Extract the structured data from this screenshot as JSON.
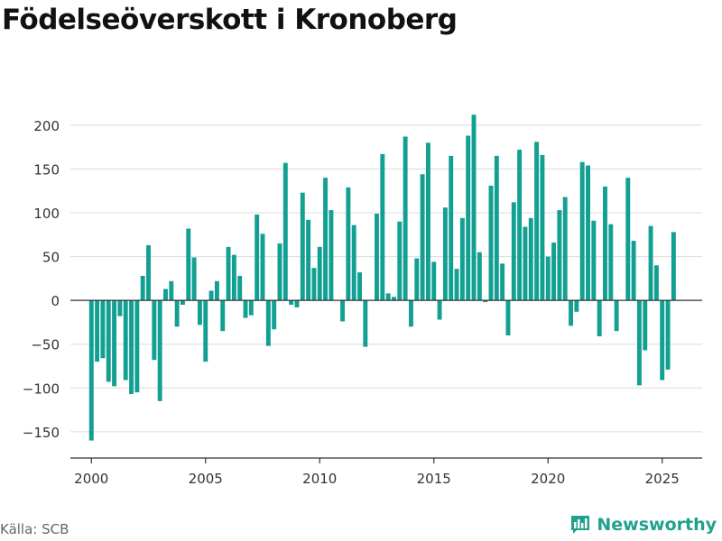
{
  "title": "Födelseöverskott i Kronoberg",
  "source": "Källa: SCB",
  "brand": {
    "name": "Newsworthy"
  },
  "colors": {
    "bar": "#12a092",
    "brand": "#21a08e",
    "grid": "#dcdcdc",
    "axis": "#333333",
    "tick_text": "#333333"
  },
  "icons": {
    "brand_logo": "bar-chart-icon"
  },
  "chart_data": {
    "type": "bar",
    "title": "Födelseöverskott i Kronoberg",
    "xlabel": "",
    "ylabel": "",
    "ylim": [
      -180,
      240
    ],
    "xlim": [
      1999.08,
      2026.75
    ],
    "grid": true,
    "legend": "none",
    "y_ticks": [
      -150,
      -100,
      -50,
      0,
      50,
      100,
      150,
      200
    ],
    "x_ticks": [
      2000,
      2005,
      2010,
      2015,
      2020,
      2025
    ],
    "series": [
      {
        "values": [
          -160,
          -70,
          -66,
          -93,
          -98,
          -18,
          -91,
          -107,
          -105,
          28,
          63,
          -68,
          -115,
          13,
          22,
          -30,
          -5,
          82,
          49,
          -28,
          -70,
          11,
          22,
          -35,
          61,
          52,
          28,
          -20,
          -17,
          98,
          76,
          -52,
          -33,
          65,
          157,
          -5,
          -8,
          123,
          92,
          37,
          61,
          140,
          103,
          0,
          -24,
          129,
          86,
          32,
          -53,
          0,
          99,
          167,
          8,
          4,
          90,
          187,
          -30,
          48,
          144,
          180,
          44,
          -22,
          106,
          165,
          36,
          94,
          188,
          212,
          55,
          -2,
          131,
          165,
          42,
          -40,
          112,
          172,
          84,
          94,
          181,
          166,
          50,
          66,
          103,
          118,
          -29,
          -13,
          158,
          154,
          91,
          -41,
          130,
          87,
          -35,
          0,
          140,
          68,
          -97,
          -57,
          85,
          40,
          -91,
          -79,
          78
        ]
      }
    ]
  }
}
